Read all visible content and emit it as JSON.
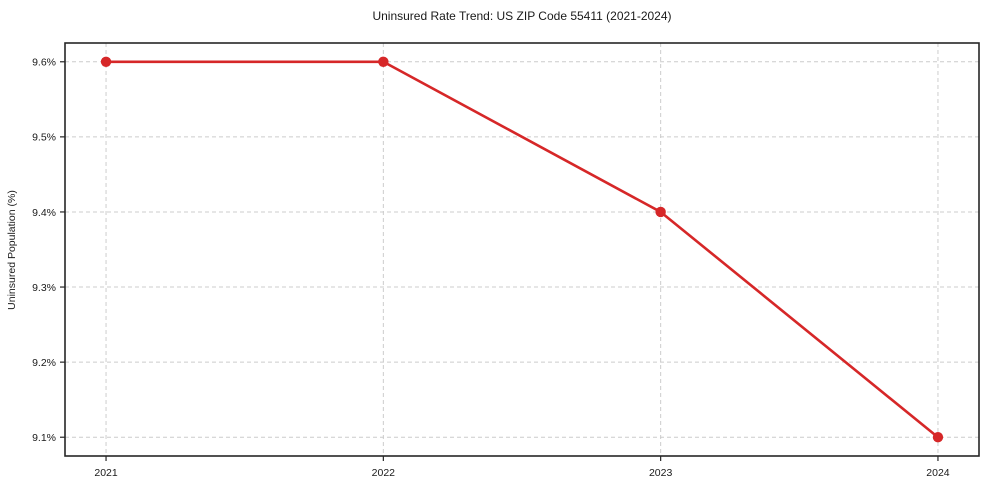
{
  "figure": {
    "background": "#ffffff"
  },
  "chart_data": {
    "type": "line",
    "title": "Uninsured Rate Trend: US ZIP Code 55411 (2021-2024)",
    "xlabel": "",
    "ylabel": "Uninsured Population (%)",
    "x": [
      2021,
      2022,
      2023,
      2024
    ],
    "values": [
      9.6,
      9.6,
      9.4,
      9.1
    ],
    "xticks": [
      {
        "v": 2021,
        "label": "2021"
      },
      {
        "v": 2022,
        "label": "2022"
      },
      {
        "v": 2023,
        "label": "2023"
      },
      {
        "v": 2024,
        "label": "2024"
      }
    ],
    "yticks": [
      {
        "v": 9.1,
        "label": "9.1%"
      },
      {
        "v": 9.2,
        "label": "9.2%"
      },
      {
        "v": 9.3,
        "label": "9.3%"
      },
      {
        "v": 9.4,
        "label": "9.4%"
      },
      {
        "v": 9.5,
        "label": "9.5%"
      },
      {
        "v": 9.6,
        "label": "9.6%"
      }
    ],
    "xlim": [
      2020.852,
      2024.148
    ],
    "ylim": [
      9.075,
      9.625
    ],
    "grid": true,
    "grid_style": "dashed",
    "legend": "none",
    "line_color": "#d62728",
    "marker": "circle",
    "grid_color": "#cccccc",
    "axis_color": "#262626",
    "text_color": "#1a1a1a"
  }
}
